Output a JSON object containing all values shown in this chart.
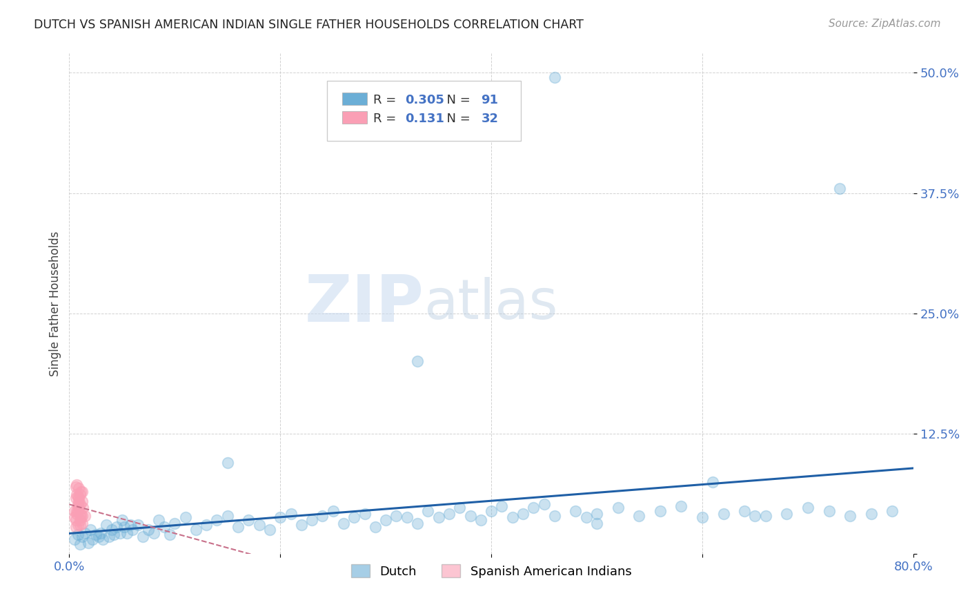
{
  "title": "DUTCH VS SPANISH AMERICAN INDIAN SINGLE FATHER HOUSEHOLDS CORRELATION CHART",
  "source": "Source: ZipAtlas.com",
  "ylabel": "Single Father Households",
  "watermark_zip": "ZIP",
  "watermark_atlas": "atlas",
  "blue_color": "#6baed6",
  "pink_color": "#fa9fb5",
  "line_blue": "#1f5fa6",
  "line_pink": "#c8708a",
  "R_blue": 0.305,
  "N_blue": 91,
  "R_pink": 0.131,
  "N_pink": 32,
  "xlim": [
    0.0,
    0.8
  ],
  "ylim": [
    0.0,
    0.52
  ],
  "xtick_vals": [
    0.0,
    0.2,
    0.4,
    0.6,
    0.8
  ],
  "xtick_labels": [
    "0.0%",
    "",
    "",
    "",
    "80.0%"
  ],
  "ytick_vals": [
    0.0,
    0.125,
    0.25,
    0.375,
    0.5
  ],
  "ytick_labels": [
    "",
    "12.5%",
    "25.0%",
    "37.5%",
    "50.0%"
  ],
  "dutch_x": [
    0.005,
    0.008,
    0.01,
    0.012,
    0.015,
    0.018,
    0.02,
    0.022,
    0.025,
    0.028,
    0.03,
    0.032,
    0.035,
    0.038,
    0.04,
    0.042,
    0.045,
    0.048,
    0.05,
    0.052,
    0.055,
    0.058,
    0.06,
    0.065,
    0.07,
    0.075,
    0.08,
    0.085,
    0.09,
    0.095,
    0.1,
    0.11,
    0.12,
    0.13,
    0.14,
    0.15,
    0.16,
    0.17,
    0.18,
    0.19,
    0.2,
    0.21,
    0.22,
    0.23,
    0.24,
    0.25,
    0.26,
    0.27,
    0.28,
    0.29,
    0.3,
    0.31,
    0.32,
    0.33,
    0.34,
    0.35,
    0.36,
    0.37,
    0.38,
    0.39,
    0.4,
    0.41,
    0.42,
    0.43,
    0.44,
    0.45,
    0.46,
    0.48,
    0.49,
    0.5,
    0.52,
    0.54,
    0.56,
    0.58,
    0.6,
    0.62,
    0.64,
    0.66,
    0.68,
    0.7,
    0.72,
    0.74,
    0.76,
    0.78,
    0.46,
    0.33,
    0.73,
    0.5,
    0.61,
    0.65,
    0.15
  ],
  "dutch_y": [
    0.015,
    0.02,
    0.01,
    0.018,
    0.022,
    0.012,
    0.025,
    0.015,
    0.02,
    0.018,
    0.022,
    0.015,
    0.03,
    0.018,
    0.025,
    0.02,
    0.028,
    0.022,
    0.035,
    0.028,
    0.022,
    0.03,
    0.025,
    0.03,
    0.018,
    0.025,
    0.022,
    0.035,
    0.028,
    0.02,
    0.032,
    0.038,
    0.025,
    0.03,
    0.035,
    0.04,
    0.028,
    0.035,
    0.03,
    0.025,
    0.038,
    0.042,
    0.03,
    0.035,
    0.04,
    0.045,
    0.032,
    0.038,
    0.042,
    0.028,
    0.035,
    0.04,
    0.038,
    0.032,
    0.045,
    0.038,
    0.042,
    0.048,
    0.04,
    0.035,
    0.045,
    0.05,
    0.038,
    0.042,
    0.048,
    0.052,
    0.04,
    0.045,
    0.038,
    0.042,
    0.048,
    0.04,
    0.045,
    0.05,
    0.038,
    0.042,
    0.045,
    0.04,
    0.042,
    0.048,
    0.045,
    0.04,
    0.042,
    0.045,
    0.495,
    0.2,
    0.38,
    0.032,
    0.075,
    0.04,
    0.095
  ],
  "spanish_x": [
    0.005,
    0.008,
    0.01,
    0.012,
    0.006,
    0.015,
    0.008,
    0.01,
    0.012,
    0.007,
    0.009,
    0.011,
    0.013,
    0.006,
    0.008,
    0.01,
    0.012,
    0.007,
    0.009,
    0.011,
    0.005,
    0.007,
    0.009,
    0.011,
    0.006,
    0.008,
    0.01,
    0.012,
    0.007,
    0.009,
    0.006,
    0.008
  ],
  "spanish_y": [
    0.045,
    0.06,
    0.035,
    0.055,
    0.07,
    0.04,
    0.05,
    0.03,
    0.065,
    0.042,
    0.058,
    0.038,
    0.048,
    0.028,
    0.052,
    0.062,
    0.032,
    0.045,
    0.055,
    0.065,
    0.038,
    0.072,
    0.048,
    0.042,
    0.058,
    0.03,
    0.052,
    0.04,
    0.062,
    0.068,
    0.035,
    0.045
  ]
}
